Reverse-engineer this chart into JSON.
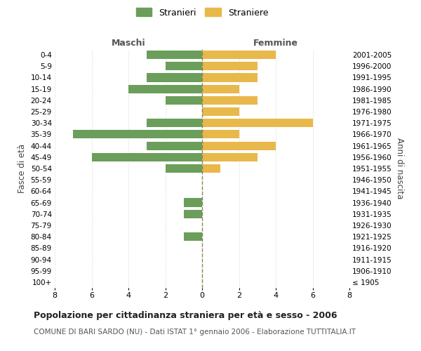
{
  "age_groups": [
    "100+",
    "95-99",
    "90-94",
    "85-89",
    "80-84",
    "75-79",
    "70-74",
    "65-69",
    "60-64",
    "55-59",
    "50-54",
    "45-49",
    "40-44",
    "35-39",
    "30-34",
    "25-29",
    "20-24",
    "15-19",
    "10-14",
    "5-9",
    "0-4"
  ],
  "birth_years": [
    "≤ 1905",
    "1906-1910",
    "1911-1915",
    "1916-1920",
    "1921-1925",
    "1926-1930",
    "1931-1935",
    "1936-1940",
    "1941-1945",
    "1946-1950",
    "1951-1955",
    "1956-1960",
    "1961-1965",
    "1966-1970",
    "1971-1975",
    "1976-1980",
    "1981-1985",
    "1986-1990",
    "1991-1995",
    "1996-2000",
    "2001-2005"
  ],
  "males": [
    0,
    0,
    0,
    0,
    1,
    0,
    1,
    1,
    0,
    0,
    2,
    6,
    3,
    7,
    3,
    0,
    2,
    4,
    3,
    2,
    3
  ],
  "females": [
    0,
    0,
    0,
    0,
    0,
    0,
    0,
    0,
    0,
    0,
    1,
    3,
    4,
    2,
    6,
    2,
    3,
    2,
    3,
    3,
    4
  ],
  "male_color": "#6a9e5a",
  "female_color": "#e8b84b",
  "grid_color": "#cccccc",
  "center_line_color": "#888855",
  "bg_color": "#ffffff",
  "title": "Popolazione per cittadinanza straniera per età e sesso - 2006",
  "subtitle": "COMUNE DI BARI SARDO (NU) - Dati ISTAT 1° gennaio 2006 - Elaborazione TUTTITALIA.IT",
  "xlabel_left": "Maschi",
  "xlabel_right": "Femmine",
  "ylabel_left": "Fasce di età",
  "ylabel_right": "Anni di nascita",
  "legend_male": "Stranieri",
  "legend_female": "Straniere",
  "xlim": 8,
  "title_fontsize": 9,
  "subtitle_fontsize": 7.5
}
